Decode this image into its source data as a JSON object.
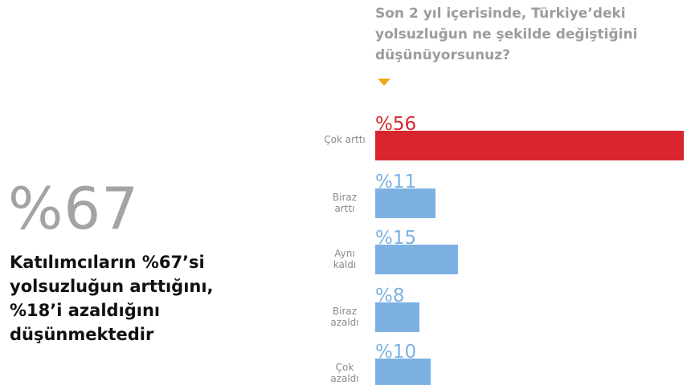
{
  "callout": {
    "headline": "%67",
    "text": "Katılımcıların %67’si yolsuzluğun arttığını, %18’i azaldığını düşünmektedir"
  },
  "chart_data": {
    "type": "bar",
    "orientation": "horizontal",
    "title": "Son 2 yıl içerisinde, Türkiye’deki yolsuzluğun ne şekilde değiştiğini düşünüyorsunuz?",
    "categories": [
      "Çok arttı",
      "Biraz arttı",
      "Aynı kaldı",
      "Biraz azaldı",
      "Çok azaldı"
    ],
    "values": [
      56,
      11,
      15,
      8,
      10
    ],
    "value_labels": [
      "%56",
      "%11",
      "%15",
      "%8",
      "%10"
    ],
    "colors": [
      "#d9262e",
      "#7cb1e2",
      "#7cb1e2",
      "#7cb1e2",
      "#7cb1e2"
    ]
  }
}
